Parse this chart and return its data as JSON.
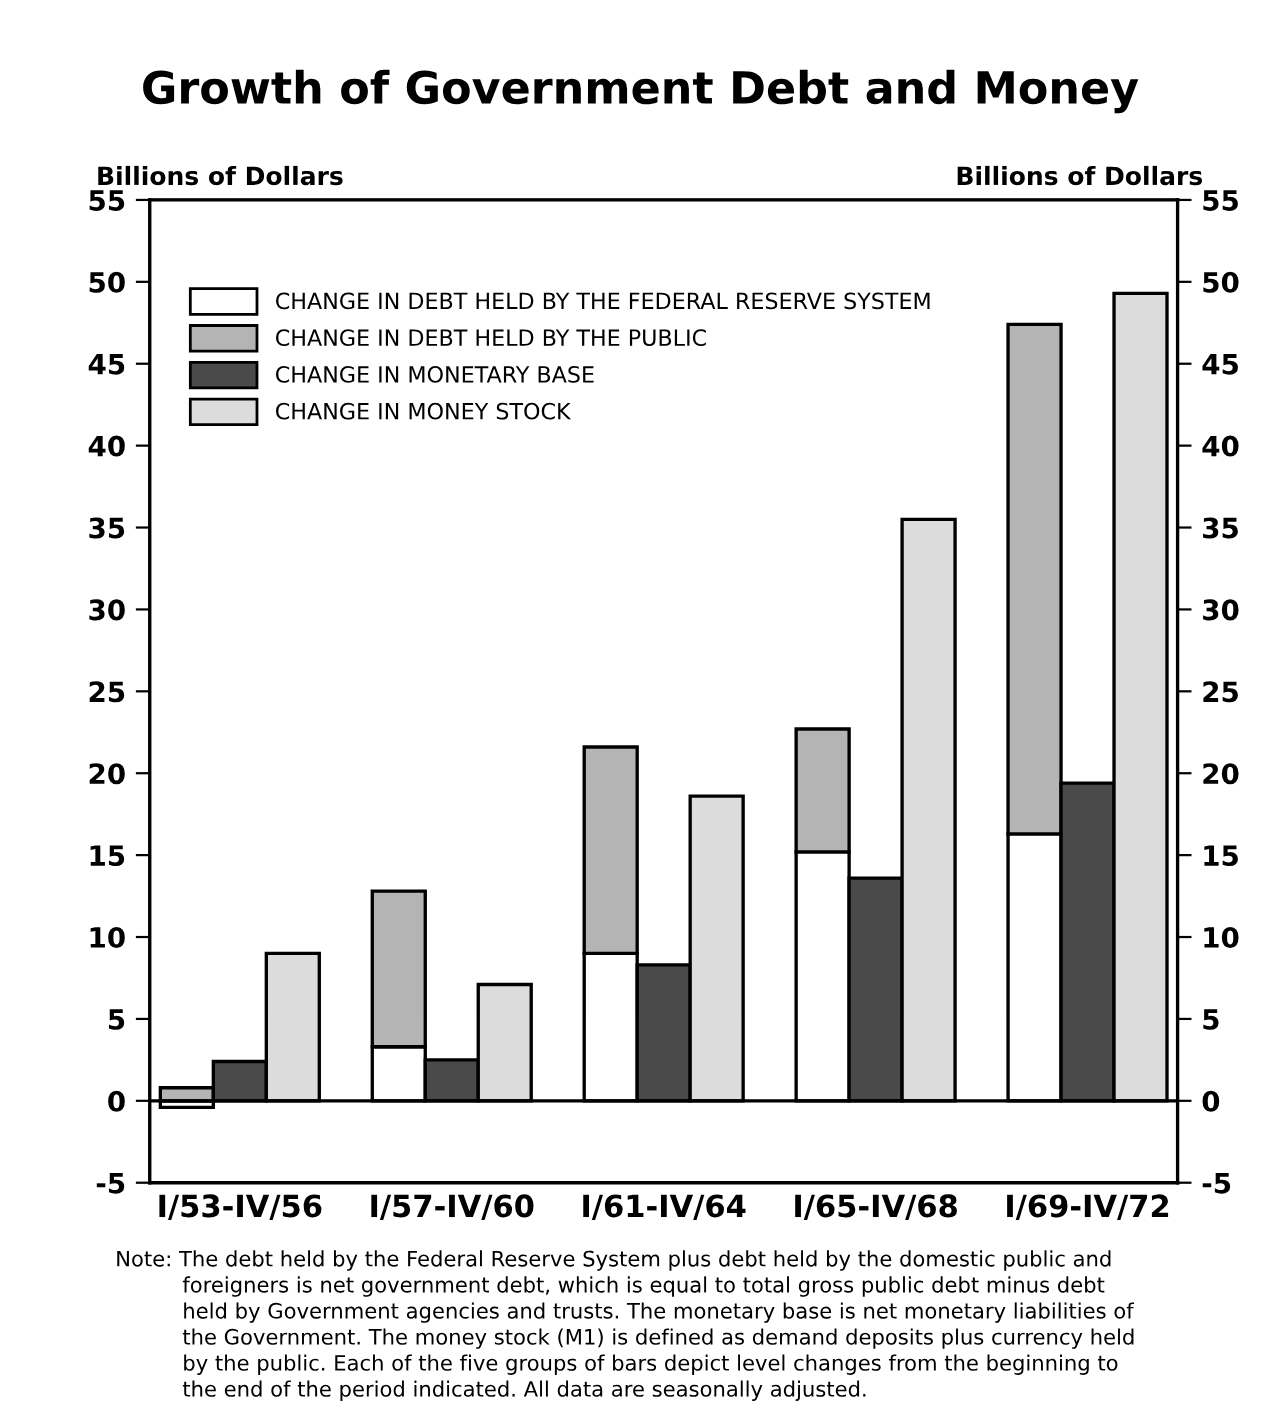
{
  "chart_data": {
    "type": "bar",
    "title": "Growth of Government Debt and Money",
    "ylabel": "Billions of Dollars",
    "y2label": "Billions of Dollars",
    "categories": [
      null,
      "I/53-IV/56",
      null,
      null,
      null,
      "I/57-IV/60",
      null,
      null,
      null,
      "I/61-IV/64",
      null,
      null,
      null,
      "I/65-IV/68",
      null,
      null,
      null,
      "I/69-IV/72",
      null
    ],
    "stacked": true,
    "ref_lines": [
      {
        "axis": "y",
        "value": 0,
        "color": "#000000"
      }
    ],
    "series": [
      {
        "name": "CHANGE IN DEBT HELD BY THE FEDERAL RESERVE SYSTEM",
        "color": "#ffffff",
        "values": [
          -0.4,
          null,
          null,
          null,
          3.3,
          null,
          null,
          null,
          9.0,
          null,
          null,
          null,
          15.2,
          null,
          null,
          null,
          16.3,
          null,
          null
        ]
      },
      {
        "name": "CHANGE IN DEBT HELD BY THE PUBLIC",
        "color": "#b4b4b4",
        "values": [
          0.8,
          null,
          null,
          null,
          9.5,
          null,
          null,
          null,
          12.6,
          null,
          null,
          null,
          7.5,
          null,
          null,
          null,
          31.1,
          null,
          null
        ]
      },
      {
        "name": "CHANGE IN MONETARY BASE",
        "color": "#4a4a4a",
        "values": [
          null,
          2.4,
          null,
          null,
          null,
          2.5,
          null,
          null,
          null,
          8.3,
          null,
          null,
          null,
          13.6,
          null,
          null,
          null,
          19.4,
          null
        ]
      },
      {
        "name": "CHANGE IN MONEY STOCK",
        "color": "#dcdcdc",
        "values": [
          null,
          null,
          9.0,
          null,
          null,
          null,
          7.1,
          null,
          null,
          null,
          18.6,
          null,
          null,
          null,
          35.5,
          null,
          null,
          null,
          49.3
        ]
      }
    ],
    "ylim": [
      -5,
      55
    ],
    "yticks": [
      -5,
      0,
      5,
      10,
      15,
      20,
      25,
      30,
      35,
      40,
      45,
      50,
      55
    ],
    "y2lim": [
      -5,
      55
    ],
    "y2ticks": [
      -5,
      0,
      5,
      10,
      15,
      20,
      25,
      30,
      35,
      40,
      45,
      50,
      55
    ],
    "legend": "top left",
    "grid": false,
    "annotations": [
      "Note: The debt held by the Federal Reserve System plus debt held by the domestic public and\n          foreigners is net government debt, which is equal to total gross public debt minus debt\n          held by Government agencies and trusts. The monetary base is net monetary liabilities of\n          the Government. The money stock (M1) is defined as demand deposits plus currency held\n          by the public. Each of the five groups of bars depict level changes from the beginning to\n          the end of the period indicated. All data are seasonally adjusted."
    ]
  }
}
